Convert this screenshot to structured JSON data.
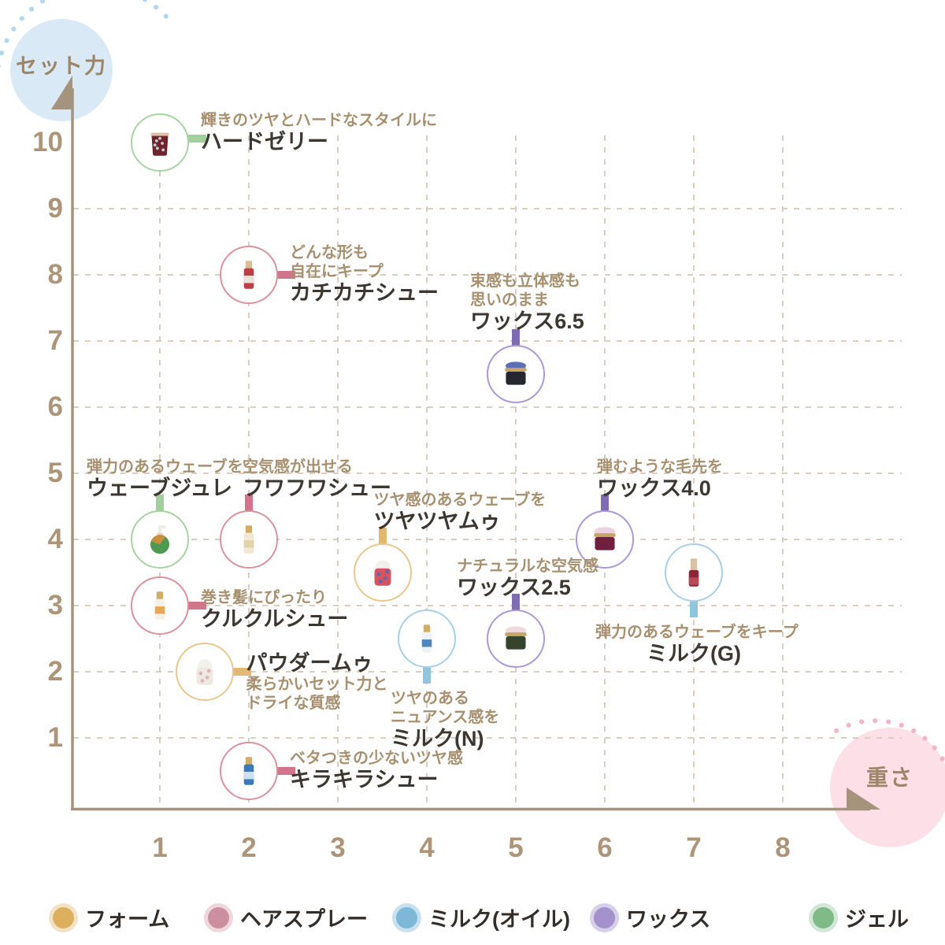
{
  "chart_data": {
    "type": "scatter",
    "title": "",
    "xlabel": "重さ",
    "ylabel": "セット力",
    "xlim": [
      0,
      8.5
    ],
    "ylim": [
      0,
      10.5
    ],
    "x_ticks": [
      1,
      2,
      3,
      4,
      5,
      6,
      7,
      8
    ],
    "y_ticks": [
      1,
      2,
      3,
      4,
      5,
      6,
      7,
      8,
      9,
      10
    ],
    "grid": "dashed",
    "legend_position": "bottom",
    "legend_order": [
      "foam",
      "spray",
      "milk",
      "wax",
      "gel"
    ],
    "categories": {
      "foam": {
        "label": "フォーム",
        "border": "#e8c88f",
        "connector": "#e2b873",
        "dot": "#dcaf5e",
        "halo": "#f3e3c6"
      },
      "spray": {
        "label": "ヘアスプレー",
        "border": "#d9929f",
        "connector": "#d2758c",
        "dot": "#cb8fa0",
        "halo": "#eed8de"
      },
      "milk": {
        "label": "ミルク(オイル)",
        "border": "#a9cfe4",
        "connector": "#93c4de",
        "dot": "#7eb8d8",
        "halo": "#c9e0ef"
      },
      "wax": {
        "label": "ワックス",
        "border": "#ab99d6",
        "connector": "#7f6ab6",
        "dot": "#a392cc",
        "halo": "#d8cfe9"
      },
      "gel": {
        "label": "ジェル",
        "border": "#a9d2a4",
        "connector": "#a3cf9e",
        "dot": "#7fba88",
        "halo": "#d2e7d5"
      }
    },
    "points": [
      {
        "name": "ハードゼリー",
        "desc": [
          "輝きのツヤとハードなスタイルに"
        ],
        "x": 1,
        "y": 10,
        "category": "gel",
        "label_side": "right",
        "icon": {
          "type": "cup",
          "cap": "#dcc0a8",
          "body": "#71242e",
          "accent": "#bcd6d4"
        }
      },
      {
        "name": "カチカチシュー",
        "desc": [
          "どんな形も",
          "自在にキープ"
        ],
        "x": 2,
        "y": 8,
        "category": "spray",
        "label_side": "right",
        "icon": {
          "type": "slim",
          "cap": "#d8be96",
          "body": "#bc3f46",
          "accent": "#e8e2da"
        }
      },
      {
        "name": "ワックス6.5",
        "desc": [
          "束感も立体感も",
          "思いのまま"
        ],
        "x": 5,
        "y": 6.5,
        "category": "wax",
        "label_side": "top",
        "icon": {
          "type": "jar",
          "cap": "#c7a468",
          "body": "#26262e",
          "accent": "#5e6fb7"
        }
      },
      {
        "name": "ウェーブジュレ",
        "desc": [
          "弾力のあるウェーブを"
        ],
        "x": 1,
        "y": 4,
        "category": "gel",
        "label_side": "top",
        "icon": {
          "type": "pump",
          "cap": "#e0d8c8",
          "body": "#4f9a52",
          "accent": "#d78f3c"
        }
      },
      {
        "name": "フワフワシュー",
        "desc": [
          "空気感が出せる"
        ],
        "x": 2,
        "y": 4,
        "category": "spray",
        "label_side": "top",
        "icon": {
          "type": "slim",
          "cap": "#d2ad66",
          "body": "#f1e9d4",
          "accent": "#e3d3a8"
        }
      },
      {
        "name": "ツヤツヤムゥ",
        "desc": [
          "ツヤ感のあるウェーブを"
        ],
        "x": 3.5,
        "y": 3.5,
        "category": "foam",
        "label_side": "top",
        "icon": {
          "type": "can",
          "cap": "#f2f0ea",
          "body": "#d85360",
          "accent": "#3f6fbe"
        }
      },
      {
        "name": "ワックス4.0",
        "desc": [
          "弾むような毛先を"
        ],
        "x": 6,
        "y": 4,
        "category": "wax",
        "label_side": "top",
        "icon": {
          "type": "jar",
          "cap": "#c7a468",
          "body": "#701f40",
          "accent": "#ecd2da"
        }
      },
      {
        "name": "ミルク(G)",
        "desc": [
          "弾力のあるウェーブをキープ"
        ],
        "x": 7,
        "y": 3.5,
        "category": "milk",
        "label_side": "bottom",
        "icon": {
          "type": "slim",
          "cap": "#d9c2a2",
          "body": "#8c2738",
          "accent": "#b84a58",
          "tall_cap": true
        }
      },
      {
        "name": "クルクルシュー",
        "desc": [
          "巻き髪にぴったり"
        ],
        "x": 1,
        "y": 3,
        "category": "spray",
        "label_side": "right",
        "icon": {
          "type": "slim",
          "cap": "#d2ad66",
          "body": "#f6f1e6",
          "accent": "#e9a75e"
        }
      },
      {
        "name": "ワックス2.5",
        "desc": [
          "ナチュラルな空気感"
        ],
        "x": 5,
        "y": 2.5,
        "category": "wax",
        "label_side": "top",
        "icon": {
          "type": "jar",
          "cap": "#c7a468",
          "body": "#37442c",
          "accent": "#eedadd"
        }
      },
      {
        "name": "ミルク(N)",
        "desc": [
          "ツヤのある",
          "ニュアンス感を"
        ],
        "x": 4,
        "y": 2.5,
        "category": "milk",
        "label_side": "bottom",
        "icon": {
          "type": "slim",
          "cap": "#d2ad66",
          "body": "#eef2f6",
          "accent": "#4f86bd"
        }
      },
      {
        "name": "パウダームゥ",
        "desc": [
          "柔らかいセット力と",
          "ドライな質感"
        ],
        "x": 1.5,
        "y": 2,
        "category": "foam",
        "label_side": "right",
        "name_first": true,
        "icon": {
          "type": "can",
          "cap": "#f4f1ea",
          "body": "#efe9e2",
          "accent": "#d8a8bc"
        }
      },
      {
        "name": "キラキラシュー",
        "desc": [
          "ベタつきの少ないツヤ感"
        ],
        "x": 2,
        "y": 0.5,
        "category": "spray",
        "label_side": "right",
        "icon": {
          "type": "slim",
          "cap": "#d2ad66",
          "body": "#3c78bb",
          "accent": "#cfe0f0"
        }
      }
    ]
  },
  "colors": {
    "background": "#ffffff",
    "axis": "#a6937e",
    "grid": "#d8cec2",
    "tick_text": "#ac9579",
    "desc_text": "#a7906f",
    "name_text": "#3d3731",
    "legend_text": "#332e29",
    "bubble_blue_bg": "#d9eaf6",
    "bubble_pink_bg": "#fcdfe7",
    "bubble_text": "#9c8569",
    "dots_blue": "#b2d6ee",
    "dots_pink": "#f4b3c6"
  }
}
